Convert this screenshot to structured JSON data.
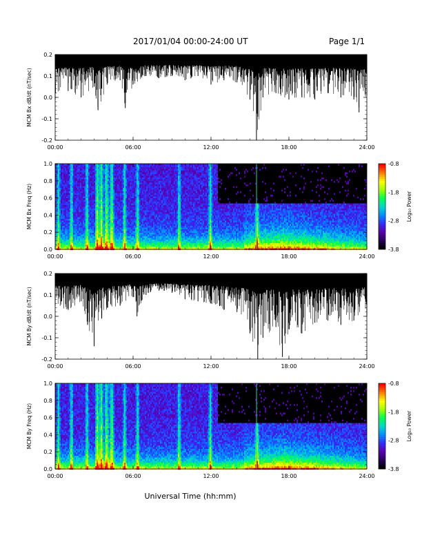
{
  "header": {
    "date_range": "2017/01/04  00:00-24:00 UT",
    "page": "Page 1/1"
  },
  "colors": {
    "trace": "#000000",
    "background": "#ffffff",
    "colormap": [
      "#000000",
      "#2a0060",
      "#5a00b0",
      "#3030ff",
      "#0090ff",
      "#00d8c8",
      "#00ff50",
      "#a0ff00",
      "#ffff00",
      "#ff8000",
      "#ff0000"
    ]
  },
  "chart_data": [
    {
      "type": "line",
      "ylabel": "MCM Bx dB/dt (nT/sec)",
      "ylim": [
        -0.2,
        0.2
      ],
      "yticks": [
        "0.2",
        "0.1",
        "0.0",
        "-0.1",
        "-0.2"
      ],
      "xlabel": "",
      "xticks": [
        "00:00",
        "06:00",
        "12:00",
        "18:00",
        "24:00"
      ],
      "xlim_hours": [
        0,
        24
      ],
      "series": [
        {
          "hours": [
            0,
            1,
            2,
            3,
            3.3,
            4,
            5,
            5.4,
            6,
            7,
            8,
            9,
            10,
            11,
            12,
            13,
            14,
            15,
            15.5,
            16,
            17,
            18,
            19,
            20,
            21,
            22,
            23,
            23.4,
            24
          ],
          "min_values": [
            -0.01,
            0.03,
            0.0,
            0.05,
            -0.06,
            0.06,
            0.08,
            -0.05,
            0.06,
            0.1,
            0.09,
            0.1,
            0.08,
            0.1,
            0.06,
            0.08,
            0.07,
            -0.01,
            -0.2,
            0.0,
            0.02,
            -0.01,
            0.0,
            -0.01,
            0.02,
            0.0,
            -0.01,
            -0.07,
            0.01
          ],
          "top": 0.2
        }
      ]
    },
    {
      "type": "heatmap",
      "ylabel": "MCM Bx Freq (Hz)",
      "ylim": [
        0.0,
        1.0
      ],
      "yticks": [
        "1.0",
        "0.8",
        "0.6",
        "0.4",
        "0.2",
        "0.0"
      ],
      "xticks": [
        "00:00",
        "06:00",
        "12:00",
        "18:00",
        "24:00"
      ],
      "xlim_hours": [
        0,
        24
      ],
      "colorbar_label": "Log₁₀ Power",
      "colorbar_ticks": [
        "-0.8",
        "-1.8",
        "-2.8",
        "-3.8"
      ],
      "colorbar_range": [
        -3.8,
        -0.8
      ],
      "bright_hours": [
        0.2,
        1.2,
        2.4,
        3.2,
        3.5,
        3.9,
        4.3,
        5.3,
        6.3,
        9.5,
        11.9,
        15.5
      ],
      "high_frequency_cutoff_hour": 12.5
    },
    {
      "type": "line",
      "ylabel": "MCM By dB/dt (nT/sec)",
      "ylim": [
        -0.2,
        0.2
      ],
      "yticks": [
        "0.2",
        "0.1",
        "0.0",
        "-0.1",
        "-0.2"
      ],
      "xlabel": "",
      "xticks": [
        "00:00",
        "06:00",
        "12:00",
        "18:00",
        "24:00"
      ],
      "xlim_hours": [
        0,
        24
      ],
      "series": [
        {
          "hours": [
            0,
            1,
            2,
            2.5,
            3,
            4,
            5,
            6,
            6.3,
            7,
            8,
            9,
            10,
            11,
            12,
            13,
            14,
            15,
            15.6,
            16,
            17,
            17.5,
            18,
            19,
            20,
            21,
            22,
            23,
            24
          ],
          "min_values": [
            0.05,
            0.03,
            0.07,
            -0.04,
            -0.14,
            0.04,
            0.05,
            0.09,
            0.0,
            0.1,
            0.12,
            0.11,
            0.08,
            0.07,
            0.06,
            0.03,
            0.02,
            -0.08,
            -0.2,
            -0.1,
            -0.05,
            -0.19,
            -0.06,
            -0.08,
            -0.03,
            -0.02,
            -0.04,
            -0.02,
            0.0
          ],
          "top": 0.2
        }
      ]
    },
    {
      "type": "heatmap",
      "ylabel": "MCM By Freq (Hz)",
      "ylim": [
        0.0,
        1.0
      ],
      "yticks": [
        "1.0",
        "0.8",
        "0.6",
        "0.4",
        "0.2",
        "0.0"
      ],
      "xticks": [
        "00:00",
        "06:00",
        "12:00",
        "18:00",
        "24:00"
      ],
      "xlim_hours": [
        0,
        24
      ],
      "colorbar_label": "Log₁₀ Power",
      "colorbar_ticks": [
        "-0.8",
        "-1.8",
        "-2.8",
        "-3.8"
      ],
      "colorbar_range": [
        -3.8,
        -0.8
      ],
      "bright_hours": [
        0.2,
        1.2,
        2.4,
        3.2,
        3.5,
        3.9,
        4.3,
        5.3,
        6.3,
        9.5,
        11.9,
        15.5
      ],
      "high_frequency_cutoff_hour": 12.5
    }
  ],
  "footer": {
    "xlabel": "Universal Time (hh:mm)"
  }
}
